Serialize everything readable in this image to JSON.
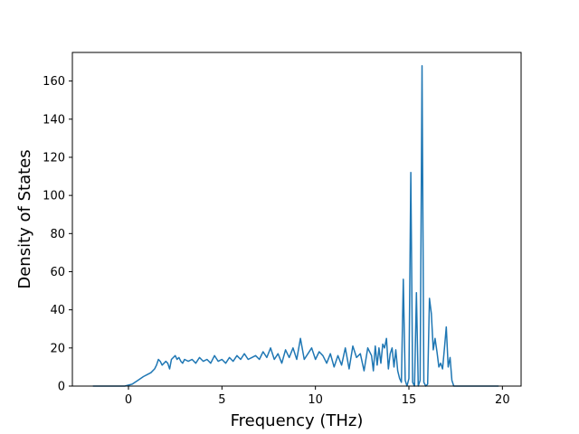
{
  "chart_data": {
    "type": "line",
    "title": "",
    "xlabel": "Frequency (THz)",
    "ylabel": "Density of States",
    "xlim": [
      -3,
      21
    ],
    "ylim": [
      0,
      175
    ],
    "xticks": [
      0,
      5,
      10,
      15,
      20
    ],
    "yticks": [
      0,
      20,
      40,
      60,
      80,
      100,
      120,
      140,
      160
    ],
    "grid": false,
    "legend": "none",
    "colors": {
      "series": "#1f77b4",
      "axes": "#000000",
      "background": "#ffffff"
    },
    "series": [
      {
        "x": [
          -1.9,
          -0.2,
          0.2,
          0.5,
          0.8,
          1.0,
          1.2,
          1.4,
          1.5,
          1.6,
          1.7,
          1.8,
          1.9,
          2.0,
          2.1,
          2.2,
          2.3,
          2.4,
          2.5,
          2.6,
          2.7,
          2.8,
          2.9,
          3.0,
          3.2,
          3.4,
          3.6,
          3.8,
          4.0,
          4.2,
          4.4,
          4.6,
          4.8,
          5.0,
          5.2,
          5.4,
          5.6,
          5.8,
          6.0,
          6.2,
          6.4,
          6.6,
          6.8,
          7.0,
          7.2,
          7.4,
          7.6,
          7.8,
          8.0,
          8.2,
          8.4,
          8.6,
          8.8,
          9.0,
          9.2,
          9.4,
          9.6,
          9.8,
          10.0,
          10.2,
          10.4,
          10.6,
          10.8,
          11.0,
          11.2,
          11.4,
          11.6,
          11.8,
          12.0,
          12.2,
          12.4,
          12.6,
          12.8,
          13.0,
          13.1,
          13.2,
          13.3,
          13.4,
          13.5,
          13.6,
          13.7,
          13.8,
          13.9,
          14.0,
          14.1,
          14.2,
          14.3,
          14.4,
          14.5,
          14.6,
          14.7,
          14.8,
          14.9,
          15.0,
          15.1,
          15.2,
          15.3,
          15.4,
          15.5,
          15.6,
          15.7,
          15.8,
          15.9,
          16.0,
          16.1,
          16.2,
          16.3,
          16.4,
          16.5,
          16.6,
          16.7,
          16.8,
          16.9,
          17.0,
          17.1,
          17.2,
          17.3,
          17.4,
          17.5,
          17.6,
          19.8
        ],
        "values": [
          0,
          0,
          1,
          3,
          5,
          6,
          7,
          9,
          11,
          14,
          13,
          11,
          12,
          13,
          12,
          9,
          14,
          15,
          16,
          14,
          15,
          13,
          12,
          14,
          13,
          14,
          12,
          15,
          13,
          14,
          12,
          16,
          13,
          14,
          12,
          15,
          13,
          16,
          14,
          17,
          14,
          15,
          16,
          14,
          18,
          15,
          20,
          14,
          17,
          12,
          19,
          15,
          20,
          14,
          25,
          14,
          17,
          20,
          14,
          18,
          16,
          12,
          17,
          10,
          16,
          11,
          20,
          9,
          21,
          15,
          17,
          8,
          20,
          16,
          8,
          21,
          11,
          20,
          12,
          22,
          20,
          25,
          9,
          17,
          20,
          10,
          19,
          8,
          4,
          2,
          56,
          3,
          0,
          4,
          112,
          2,
          0,
          49,
          0,
          3,
          168,
          2,
          0,
          1,
          46,
          38,
          19,
          25,
          18,
          10,
          12,
          9,
          20,
          31,
          10,
          15,
          3,
          0,
          0,
          0,
          0
        ]
      }
    ]
  }
}
